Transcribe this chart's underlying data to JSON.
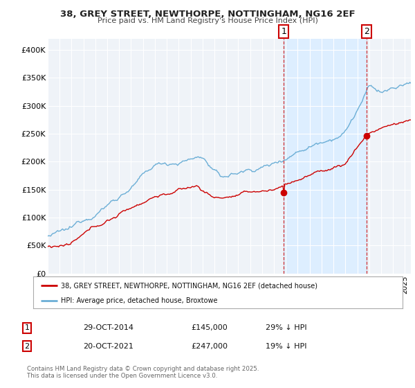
{
  "title_line1": "38, GREY STREET, NEWTHORPE, NOTTINGHAM, NG16 2EF",
  "title_line2": "Price paid vs. HM Land Registry's House Price Index (HPI)",
  "ylim": [
    0,
    420000
  ],
  "yticks": [
    0,
    50000,
    100000,
    150000,
    200000,
    250000,
    300000,
    350000,
    400000
  ],
  "ytick_labels": [
    "£0",
    "£50K",
    "£100K",
    "£150K",
    "£200K",
    "£250K",
    "£300K",
    "£350K",
    "£400K"
  ],
  "hpi_color": "#6baed6",
  "price_color": "#cc0000",
  "shade_color": "#ddeeff",
  "marker1_date_x": 2014.83,
  "marker1_price": 145000,
  "marker1_label": "29-OCT-2014",
  "marker1_price_str": "£145,000",
  "marker1_pct": "29% ↓ HPI",
  "marker2_date_x": 2021.8,
  "marker2_price": 247000,
  "marker2_label": "20-OCT-2021",
  "marker2_price_str": "£247,000",
  "marker2_pct": "19% ↓ HPI",
  "legend_line1": "38, GREY STREET, NEWTHORPE, NOTTINGHAM, NG16 2EF (detached house)",
  "legend_line2": "HPI: Average price, detached house, Broxtowe",
  "footnote": "Contains HM Land Registry data © Crown copyright and database right 2025.\nThis data is licensed under the Open Government Licence v3.0.",
  "xmin": 1995,
  "xmax": 2025.5,
  "background_color": "#eff3f8"
}
